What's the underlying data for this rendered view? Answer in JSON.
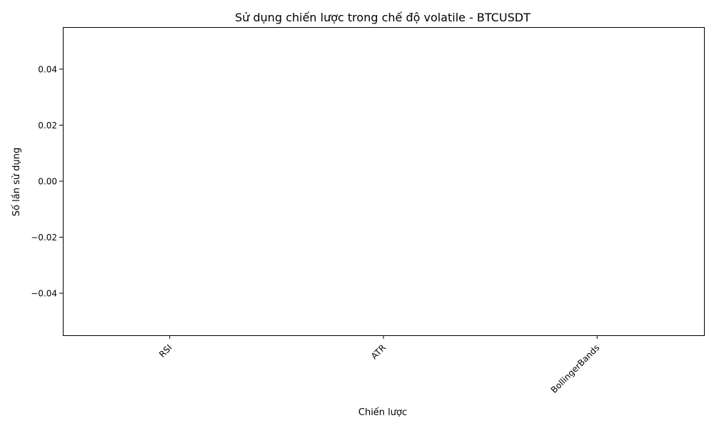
{
  "chart_data": {
    "type": "bar",
    "title": "Sử dụng chiến lược trong chế độ volatile - BTCUSDT",
    "xlabel": "Chiến lược",
    "ylabel": "Số lần sử dụng",
    "categories": [
      "RSI",
      "ATR",
      "BollingerBands"
    ],
    "values": [
      0,
      0,
      0
    ],
    "ylim": [
      -0.055,
      0.055
    ],
    "yticks": [
      0.04,
      0.02,
      0.0,
      -0.02,
      -0.04
    ],
    "ytick_labels": [
      "0.04",
      "0.02",
      "0.00",
      "−0.02",
      "−0.04"
    ],
    "xtick_rotation": 45,
    "grid": false,
    "legend": "none"
  }
}
